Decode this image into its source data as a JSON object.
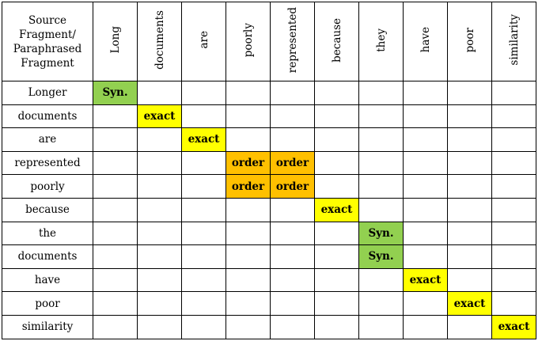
{
  "header_label": [
    "Source",
    "Fragment/",
    "Paraphrased",
    "Fragment"
  ],
  "columns": [
    "Long",
    "documents",
    "are",
    "poorly",
    "represented",
    "because",
    "they",
    "have",
    "poor",
    "similarity"
  ],
  "rows": [
    "Longer",
    "documents",
    "are",
    "represented",
    "poorly",
    "because",
    "the",
    "documents",
    "have",
    "poor",
    "similarity"
  ],
  "labels": {
    "syn": "Syn.",
    "exact": "exact",
    "order": "order"
  },
  "colors": {
    "syn": "#92d050",
    "exact": "#ffff00",
    "order": "#ffc000"
  },
  "cells": [
    {
      "row": 0,
      "col": 0,
      "type": "syn"
    },
    {
      "row": 1,
      "col": 1,
      "type": "exact"
    },
    {
      "row": 2,
      "col": 2,
      "type": "exact"
    },
    {
      "row": 3,
      "col": 3,
      "type": "order"
    },
    {
      "row": 3,
      "col": 4,
      "type": "order"
    },
    {
      "row": 4,
      "col": 3,
      "type": "order"
    },
    {
      "row": 4,
      "col": 4,
      "type": "order"
    },
    {
      "row": 5,
      "col": 5,
      "type": "exact"
    },
    {
      "row": 6,
      "col": 6,
      "type": "syn"
    },
    {
      "row": 7,
      "col": 6,
      "type": "syn"
    },
    {
      "row": 8,
      "col": 7,
      "type": "exact"
    },
    {
      "row": 9,
      "col": 8,
      "type": "exact"
    },
    {
      "row": 10,
      "col": 9,
      "type": "exact"
    }
  ]
}
